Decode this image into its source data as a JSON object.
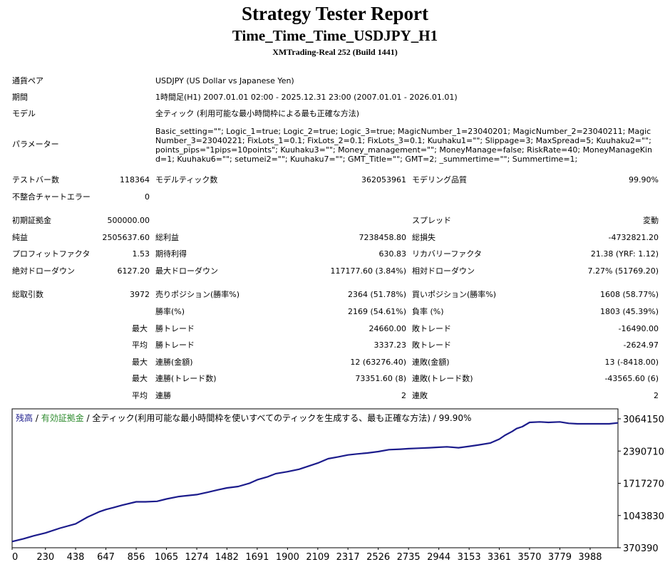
{
  "header": {
    "title": "Strategy Tester Report",
    "subtitle": "Time_Time_Time_USDJPY_H1",
    "server": "XMTrading-Real 252 (Build 1441)"
  },
  "info": {
    "pair_label": "通貨ペア",
    "pair_value": "USDJPY (US Dollar vs Japanese Yen)",
    "period_label": "期間",
    "period_value": "1時間足(H1) 2007.01.01 02:00 - 2025.12.31 23:00 (2007.01.01 - 2026.01.01)",
    "model_label": "モデル",
    "model_value": "全ティック (利用可能な最小時間枠による最も正確な方法)",
    "params_label": "パラメーター",
    "params_value": "Basic_setting=\"\"; Logic_1=true; Logic_2=true; Logic_3=true; MagicNumber_1=23040201; MagicNumber_2=23040211; MagicNumber_3=23040221; FixLots_1=0.1; FixLots_2=0.1; FixLots_3=0.1; Kuuhaku1=\"\"; Slippage=3; MaxSpread=5; Kuuhaku2=\"\"; points_pips=\"1pips=10points\"; Kuuhaku3=\"\"; Money_management=\"\"; MoneyManage=false; RiskRate=40; MoneyManageKind=1; Kuuhaku6=\"\"; setumei2=\"\"; Kuuhaku7=\"\"; GMT_Title=\"\"; GMT=2; _summertime=\"\"; Summertime=1;"
  },
  "stats": {
    "bars_label": "テストバー数",
    "bars_value": "118364",
    "ticks_label": "モデルティック数",
    "ticks_value": "362053961",
    "quality_label": "モデリング品質",
    "quality_value": "99.90%",
    "mismatch_label": "不整合チャートエラー",
    "mismatch_value": "0",
    "deposit_label": "初期証拠金",
    "deposit_value": "500000.00",
    "spread_label": "スプレッド",
    "spread_value": "変動",
    "net_label": "純益",
    "net_value": "2505637.60",
    "gross_profit_label": "総利益",
    "gross_profit_value": "7238458.80",
    "gross_loss_label": "総損失",
    "gross_loss_value": "-4732821.20",
    "pf_label": "プロフィットファクタ",
    "pf_value": "1.53",
    "expected_label": "期待利得",
    "expected_value": "630.83",
    "recovery_label": "リカバリーファクタ",
    "recovery_value": "21.38 (YRF: 1.12)",
    "abs_dd_label": "絶対ドローダウン",
    "abs_dd_value": "6127.20",
    "max_dd_label": "最大ドローダウン",
    "max_dd_value": "117177.60 (3.84%)",
    "rel_dd_label": "相対ドローダウン",
    "rel_dd_value": "7.27% (51769.20)",
    "trades_label": "総取引数",
    "trades_value": "3972",
    "short_label": "売りポジション(勝率%)",
    "short_value": "2364 (51.78%)",
    "long_label": "買いポジション(勝率%)",
    "long_value": "1608 (58.77%)",
    "winrate_label": "勝率(%)",
    "winrate_value": "2169 (54.61%)",
    "lossrate_label": "負率 (%)",
    "lossrate_value": "1803 (45.39%)",
    "max_label": "最大",
    "avg_label": "平均",
    "max_win_label": "勝トレード",
    "max_win_value": "24660.00",
    "max_loss_label": "敗トレード",
    "max_loss_value": "-16490.00",
    "avg_win_label": "勝トレード",
    "avg_win_value": "3337.23",
    "avg_loss_label": "敗トレード",
    "avg_loss_value": "-2624.97",
    "cons_win_amt_label": "連勝(金額)",
    "cons_win_amt_value": "12 (63276.40)",
    "cons_loss_amt_label": "連敗(金額)",
    "cons_loss_amt_value": "13 (-8418.00)",
    "cons_win_cnt_label": "連勝(トレード数)",
    "cons_win_cnt_value": "73351.60 (8)",
    "cons_loss_cnt_label": "連敗(トレード数)",
    "cons_loss_cnt_value": "-43565.60 (6)",
    "avg_cons_win_label": "連勝",
    "avg_cons_win_value": "2",
    "avg_cons_loss_label": "連敗",
    "avg_cons_loss_value": "2"
  },
  "legend": {
    "balance": "残高",
    "sep1": " / ",
    "equity": "有効証拠金",
    "sep2": " / ",
    "desc": "全ティック(利用可能な最小時間枠を使いすべてのティックを生成する、最も正確な方法) / 99.90%"
  },
  "colors": {
    "balance": "#1c1c8c",
    "equity": "#2e8b2e",
    "grid": "#d0d0d0"
  },
  "chart_data": {
    "type": "line",
    "title": "",
    "x_ticks": [
      "0",
      "230",
      "438",
      "647",
      "856",
      "1065",
      "1274",
      "1482",
      "1691",
      "1900",
      "2109",
      "2317",
      "2526",
      "2735",
      "2944",
      "3153",
      "3361",
      "3570",
      "3779",
      "3988"
    ],
    "y_ticks": [
      "3064150",
      "2390710",
      "1717270",
      "1043830",
      "370390"
    ],
    "ylim": [
      370390,
      3064150
    ],
    "xlim": [
      0,
      4180
    ],
    "series": [
      {
        "name": "残高",
        "x": [
          0,
          80,
          150,
          230,
          330,
          438,
          520,
          600,
          647,
          700,
          760,
          856,
          920,
          1000,
          1065,
          1150,
          1274,
          1350,
          1420,
          1482,
          1560,
          1640,
          1691,
          1760,
          1820,
          1900,
          1980,
          2050,
          2109,
          2180,
          2250,
          2317,
          2380,
          2450,
          2526,
          2600,
          2680,
          2735,
          2800,
          2880,
          2944,
          3000,
          3080,
          3153,
          3220,
          3300,
          3361,
          3400,
          3450,
          3480,
          3520,
          3570,
          3640,
          3700,
          3779,
          3840,
          3900,
          3988,
          4050,
          4120,
          4180
        ],
        "y": [
          500000,
          560000,
          620000,
          680000,
          780000,
          870000,
          1010000,
          1120000,
          1170000,
          1210000,
          1260000,
          1330000,
          1330000,
          1340000,
          1390000,
          1440000,
          1480000,
          1530000,
          1580000,
          1620000,
          1650000,
          1720000,
          1790000,
          1850000,
          1920000,
          1960000,
          2010000,
          2080000,
          2140000,
          2230000,
          2270000,
          2310000,
          2330000,
          2350000,
          2380000,
          2420000,
          2430000,
          2440000,
          2450000,
          2460000,
          2470000,
          2480000,
          2460000,
          2490000,
          2520000,
          2560000,
          2640000,
          2720000,
          2800000,
          2860000,
          2900000,
          2990000,
          3000000,
          2990000,
          3000000,
          2970000,
          2960000,
          2960000,
          2960000,
          2960000,
          2980000
        ]
      }
    ]
  }
}
